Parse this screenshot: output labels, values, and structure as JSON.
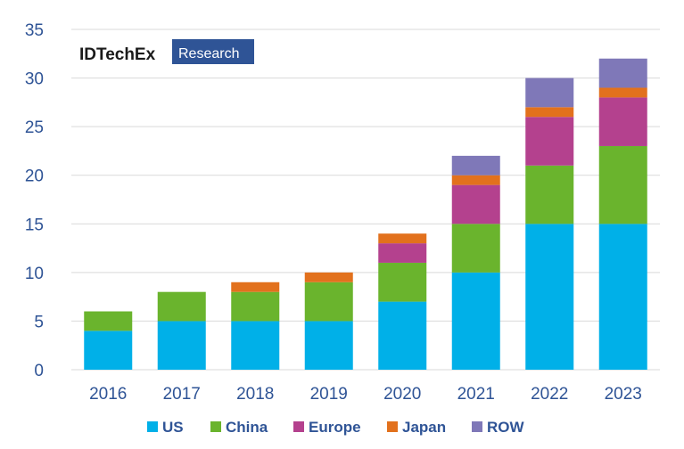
{
  "logo": {
    "main": "IDTechEx",
    "sub": "Research"
  },
  "colors": {
    "US": "#00b0e8",
    "China": "#6ab42d",
    "Europe": "#b4418e",
    "Japan": "#e2711d",
    "ROW": "#7f78b8",
    "text": "#2f5496",
    "grid": "#d9d9d9"
  },
  "chart_data": {
    "type": "bar",
    "stacked": true,
    "categories": [
      "2016",
      "2017",
      "2018",
      "2019",
      "2020",
      "2021",
      "2022",
      "2023"
    ],
    "series": [
      {
        "name": "US",
        "values": [
          4,
          5,
          5,
          5,
          7,
          10,
          15,
          15
        ]
      },
      {
        "name": "China",
        "values": [
          2,
          3,
          3,
          4,
          4,
          5,
          6,
          8
        ]
      },
      {
        "name": "Europe",
        "values": [
          0,
          0,
          0,
          0,
          2,
          4,
          5,
          5
        ]
      },
      {
        "name": "Japan",
        "values": [
          0,
          0,
          1,
          1,
          1,
          1,
          1,
          1
        ]
      },
      {
        "name": "ROW",
        "values": [
          0,
          0,
          0,
          0,
          0,
          2,
          3,
          3
        ]
      }
    ],
    "yticks": [
      0,
      5,
      10,
      15,
      20,
      25,
      30,
      35
    ],
    "ylim": [
      0,
      35
    ],
    "grid": true,
    "legend": "bottom",
    "title": "",
    "xlabel": "",
    "ylabel": ""
  }
}
